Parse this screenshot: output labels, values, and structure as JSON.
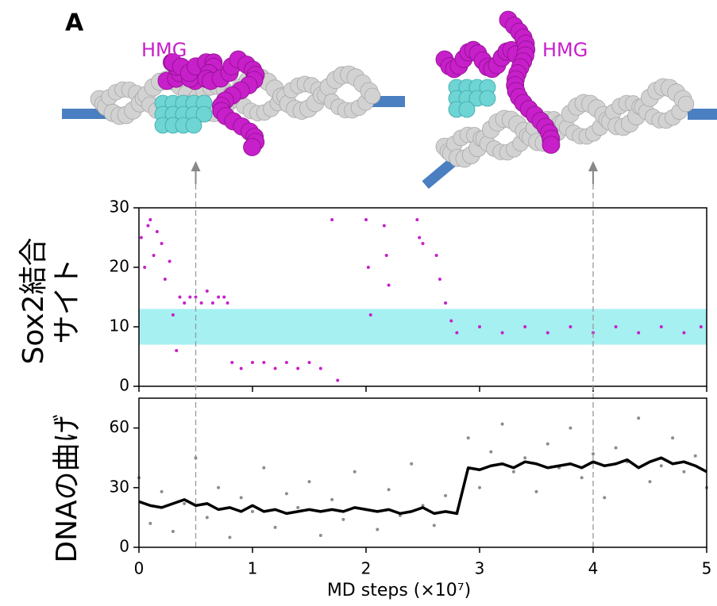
{
  "panel_label": "A",
  "annotations": [
    "HMG",
    "HMG"
  ],
  "chart_data": [
    {
      "type": "scatter",
      "ylabel": [
        "Sox2結合",
        "サイト"
      ],
      "xlim": [
        0,
        5
      ],
      "xticks": [
        0,
        1,
        2,
        3,
        4,
        5
      ],
      "ylim": [
        0,
        30
      ],
      "yticks": [
        0,
        10,
        20,
        30
      ],
      "band": [
        7,
        13
      ],
      "band_color": "#a6f0f2",
      "vlines": [
        0.5,
        4
      ],
      "series": [
        {
          "color": "#c71fc9",
          "style": "points",
          "x": [
            0.02,
            0.05,
            0.08,
            0.1,
            0.13,
            0.16,
            0.2,
            0.23,
            0.27,
            0.3,
            0.33,
            0.36,
            0.4,
            0.45,
            0.5,
            0.55,
            0.6,
            0.65,
            0.7,
            0.75,
            0.78,
            0.82,
            0.9,
            1.0,
            1.1,
            1.2,
            1.3,
            1.4,
            1.5,
            1.6,
            1.7,
            1.75,
            2.0,
            2.02,
            2.04,
            2.16,
            2.18,
            2.2,
            2.45,
            2.47,
            2.5,
            2.62,
            2.65,
            2.7,
            2.75,
            2.8,
            3.0,
            3.2,
            3.4,
            3.6,
            3.8,
            4.0,
            4.2,
            4.4,
            4.6,
            4.8,
            4.95
          ],
          "values": [
            25,
            20,
            27,
            28,
            22,
            26,
            24,
            18,
            21,
            12,
            6,
            15,
            14,
            15,
            15,
            14,
            16,
            14,
            15,
            15,
            14,
            4,
            3,
            4,
            4,
            3,
            4,
            3,
            4,
            3,
            28,
            1,
            28,
            20,
            12,
            27,
            22,
            17,
            28,
            25,
            24,
            22,
            18,
            14,
            11,
            9,
            10,
            9,
            10,
            9,
            10,
            9,
            10,
            9,
            10,
            9,
            10
          ]
        }
      ]
    },
    {
      "type": "scatter",
      "ylabel": "DNAの曲げ",
      "xlabel": "MD steps (×10⁷)",
      "xlim": [
        0,
        5
      ],
      "xticks": [
        0,
        1,
        2,
        3,
        4,
        5
      ],
      "ylim": [
        0,
        75
      ],
      "yticks": [
        0,
        30,
        60
      ],
      "series": [
        {
          "color": "#8c8c8c",
          "style": "points",
          "x": [
            0,
            0.1,
            0.2,
            0.3,
            0.4,
            0.5,
            0.6,
            0.7,
            0.8,
            0.9,
            1.0,
            1.1,
            1.2,
            1.3,
            1.4,
            1.5,
            1.6,
            1.7,
            1.8,
            1.9,
            2.0,
            2.1,
            2.2,
            2.3,
            2.4,
            2.5,
            2.6,
            2.7,
            2.8,
            2.9,
            3.0,
            3.1,
            3.2,
            3.3,
            3.4,
            3.5,
            3.6,
            3.7,
            3.8,
            3.9,
            4.0,
            4.1,
            4.2,
            4.3,
            4.4,
            4.5,
            4.6,
            4.7,
            4.8,
            4.9,
            5.0
          ],
          "values": [
            35,
            12,
            28,
            8,
            22,
            45,
            15,
            30,
            5,
            25,
            18,
            40,
            10,
            27,
            20,
            33,
            6,
            24,
            14,
            38,
            19,
            9,
            29,
            16,
            42,
            21,
            11,
            26,
            17,
            55,
            30,
            48,
            62,
            38,
            45,
            28,
            52,
            40,
            60,
            35,
            47,
            25,
            50,
            43,
            65,
            33,
            41,
            55,
            38,
            46,
            30
          ]
        },
        {
          "color": "#000000",
          "style": "line",
          "x": [
            0,
            0.1,
            0.2,
            0.3,
            0.4,
            0.5,
            0.6,
            0.7,
            0.8,
            0.9,
            1.0,
            1.1,
            1.2,
            1.3,
            1.4,
            1.5,
            1.6,
            1.7,
            1.8,
            1.9,
            2.0,
            2.1,
            2.2,
            2.3,
            2.4,
            2.5,
            2.6,
            2.7,
            2.8,
            2.9,
            3.0,
            3.1,
            3.2,
            3.3,
            3.4,
            3.5,
            3.6,
            3.7,
            3.8,
            3.9,
            4.0,
            4.1,
            4.2,
            4.3,
            4.4,
            4.5,
            4.6,
            4.7,
            4.8,
            4.9,
            5.0
          ],
          "values": [
            23,
            21,
            20,
            22,
            24,
            21,
            22,
            19,
            20,
            18,
            21,
            18,
            19,
            17,
            18,
            19,
            18,
            19,
            18,
            20,
            19,
            18,
            19,
            17,
            18,
            20,
            17,
            18,
            17,
            40,
            39,
            41,
            42,
            40,
            43,
            42,
            40,
            41,
            42,
            40,
            43,
            41,
            42,
            44,
            40,
            43,
            45,
            42,
            43,
            41,
            38
          ]
        }
      ]
    }
  ]
}
